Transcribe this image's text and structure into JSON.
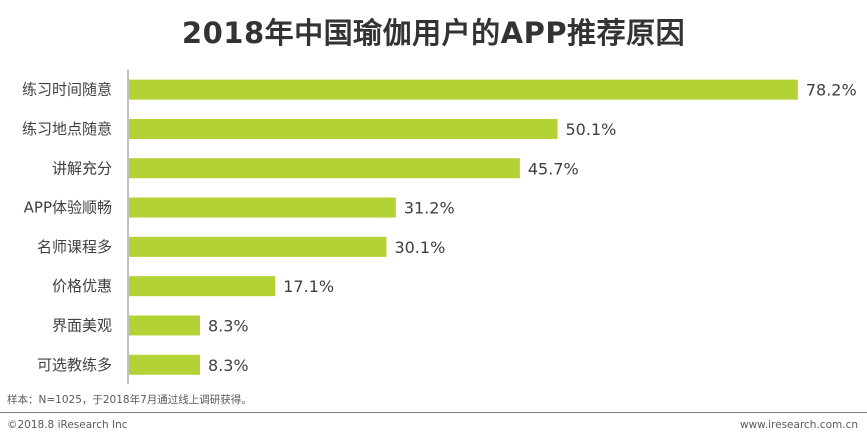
{
  "chart_data": {
    "type": "bar",
    "orientation": "horizontal",
    "title": "2018年中国瑜伽用户的APP推荐原因",
    "categories": [
      "练习时间随意",
      "练习地点随意",
      "讲解充分",
      "APP体验顺畅",
      "名师课程多",
      "价格优惠",
      "界面美观",
      "可选教练多"
    ],
    "values": [
      78.2,
      50.1,
      45.7,
      31.2,
      30.1,
      17.1,
      8.3,
      8.3
    ],
    "value_labels": [
      "78.2%",
      "50.1%",
      "45.7%",
      "31.2%",
      "30.1%",
      "17.1%",
      "8.3%",
      "8.3%"
    ],
    "unit": "%",
    "xlim": [
      0,
      85
    ],
    "xlabel": "",
    "ylabel": "",
    "grid": false,
    "bar_color": "#b2d235"
  },
  "footer": {
    "sample_note": "样本：N=1025，于2018年7月通过线上调研获得。",
    "copyright": "©2018.8 iResearch Inc",
    "website": "www.iresearch.com.cn"
  }
}
